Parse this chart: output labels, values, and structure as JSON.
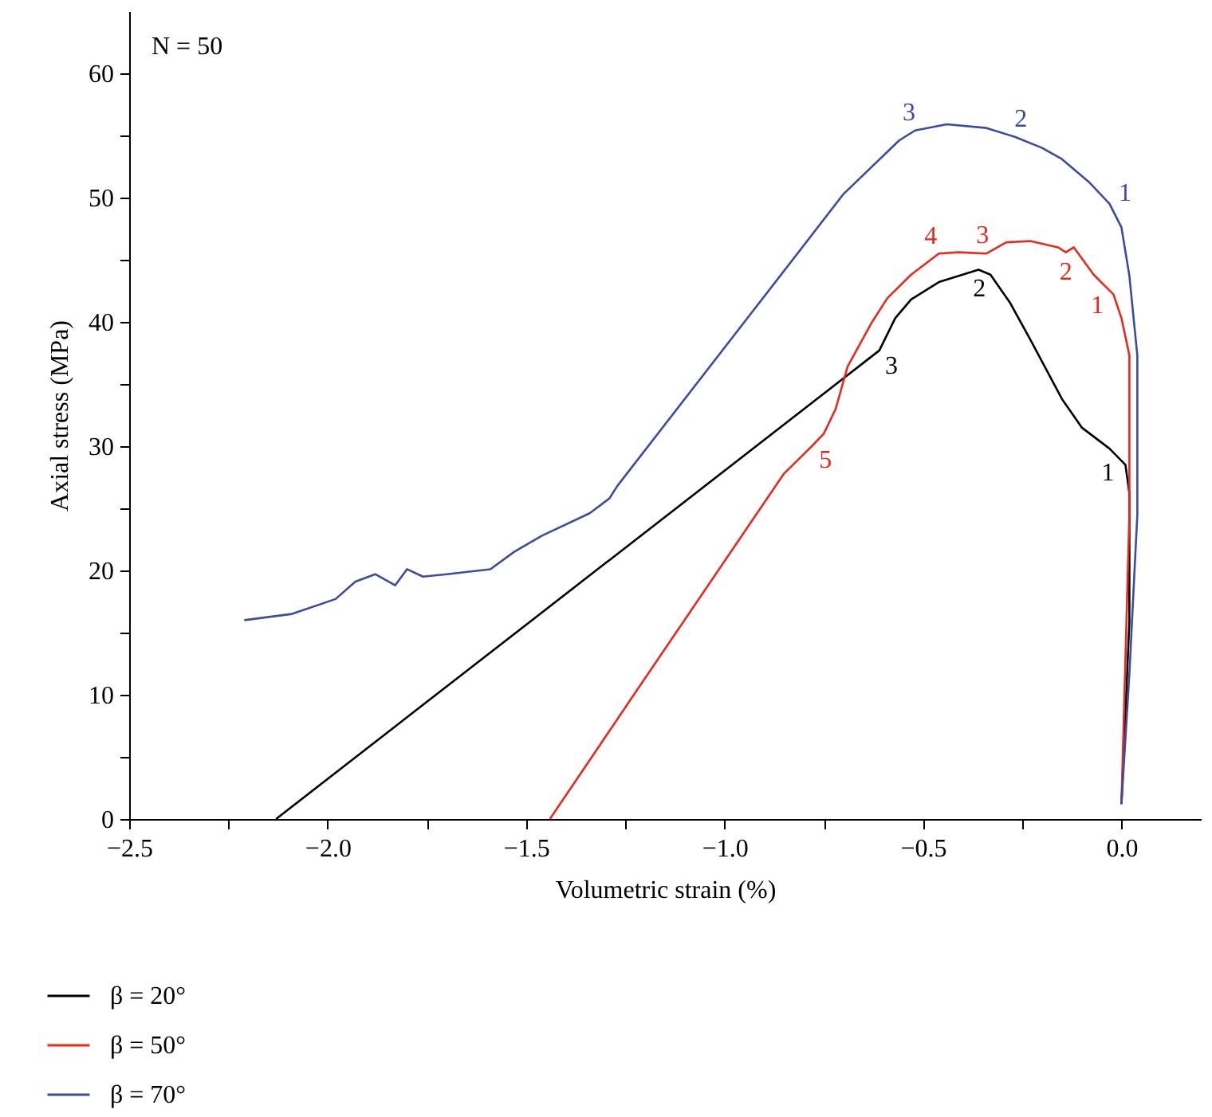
{
  "chart_data": {
    "type": "line",
    "xlabel": "Volumetric strain (%)",
    "ylabel": "Axial stress (MPa)",
    "xlim": [
      -2.5,
      0.2
    ],
    "ylim": [
      0,
      65
    ],
    "xticks": [
      {
        "value": -2.5,
        "label": "−2.5"
      },
      {
        "value": -2.25,
        "label": null
      },
      {
        "value": -2.0,
        "label": "−2.0"
      },
      {
        "value": -1.75,
        "label": null
      },
      {
        "value": -1.5,
        "label": "−1.5"
      },
      {
        "value": -1.25,
        "label": null
      },
      {
        "value": -1.0,
        "label": "−1.0"
      },
      {
        "value": -0.75,
        "label": null
      },
      {
        "value": -0.5,
        "label": "−0.5"
      },
      {
        "value": -0.25,
        "label": null
      },
      {
        "value": 0,
        "label": "0.0"
      }
    ],
    "yticks": [
      0,
      {
        "value": 5,
        "label": null
      },
      10,
      {
        "value": 15,
        "label": null
      },
      20,
      {
        "value": 25,
        "label": null
      },
      30,
      {
        "value": 35,
        "label": null
      },
      40,
      {
        "value": 45,
        "label": null
      },
      50,
      {
        "value": 55,
        "label": null
      },
      60
    ],
    "legend": "bottom left",
    "line_style": "solid",
    "series": [
      {
        "name": "β = 20°",
        "color": "#000000",
        "x": [
          -2.13,
          -0.61,
          -0.57,
          -0.53,
          -0.46,
          -0.41,
          -0.36,
          -0.33,
          -0.28,
          -0.23,
          -0.15,
          -0.1,
          -0.03,
          0.01,
          0.02,
          0.02,
          0.0
        ],
        "values": [
          0,
          37.7,
          40.3,
          41.8,
          43.2,
          43.7,
          44.2,
          43.8,
          41.5,
          38.6,
          33.8,
          31.5,
          29.8,
          28.5,
          26.2,
          15.9,
          1.2
        ]
      },
      {
        "name": "β = 50°",
        "color": "#e8291c",
        "x": [
          -1.44,
          -1.22,
          -0.85,
          -0.78,
          -0.75,
          -0.72,
          -0.69,
          -0.63,
          -0.59,
          -0.53,
          -0.46,
          -0.41,
          -0.34,
          -0.29,
          -0.23,
          -0.16,
          -0.14,
          -0.12,
          -0.07,
          -0.02,
          0.0,
          0.02,
          0.02,
          0.0
        ],
        "values": [
          0,
          10.4,
          27.8,
          30,
          31,
          33,
          36.4,
          39.9,
          41.9,
          43.8,
          45.5,
          45.6,
          45.5,
          46.4,
          46.5,
          46.0,
          45.6,
          46.0,
          43.8,
          42.2,
          40.3,
          37.3,
          24.5,
          1.2
        ]
      },
      {
        "name": "β = 70°",
        "color": "#3c4ca0",
        "x": [
          -2.21,
          -2.09,
          -1.98,
          -1.93,
          -1.88,
          -1.83,
          -1.8,
          -1.76,
          -1.7,
          -1.59,
          -1.53,
          -1.46,
          -1.34,
          -1.29,
          -1.27,
          -0.7,
          -0.56,
          -0.52,
          -0.44,
          -0.34,
          -0.27,
          -0.2,
          -0.15,
          -0.08,
          -0.03,
          0.0,
          0.02,
          0.04,
          0.04,
          0.02,
          0.0
        ],
        "values": [
          16.0,
          16.5,
          17.7,
          19.1,
          19.7,
          18.8,
          20.1,
          19.5,
          19.7,
          20.1,
          21.5,
          22.8,
          24.6,
          25.8,
          26.8,
          50.3,
          54.6,
          55.4,
          55.9,
          55.6,
          54.9,
          54.0,
          53.1,
          51.2,
          49.5,
          47.6,
          43.7,
          37.3,
          24.5,
          11.7,
          1.2
        ]
      }
    ],
    "annotations": [
      "N = 50",
      {
        "text": "1",
        "x": 0.01,
        "y": 28.5
      },
      {
        "text": "2",
        "x": -0.36,
        "y": 44.2
      },
      {
        "text": "3",
        "x": -0.61,
        "y": 37.7
      },
      {
        "text": "1",
        "x": -0.02,
        "y": 42.2
      },
      {
        "text": "2",
        "x": -0.14,
        "y": 45.6
      },
      {
        "text": "3",
        "x": -0.34,
        "y": 45.5
      },
      {
        "text": "4",
        "x": -0.46,
        "y": 45.5
      },
      {
        "text": "5",
        "x": -0.78,
        "y": 30
      },
      {
        "text": "1",
        "x": -0.03,
        "y": 49.5
      },
      {
        "text": "2",
        "x": -0.27,
        "y": 54.9
      },
      {
        "text": "3",
        "x": -0.52,
        "y": 55.4
      }
    ]
  }
}
